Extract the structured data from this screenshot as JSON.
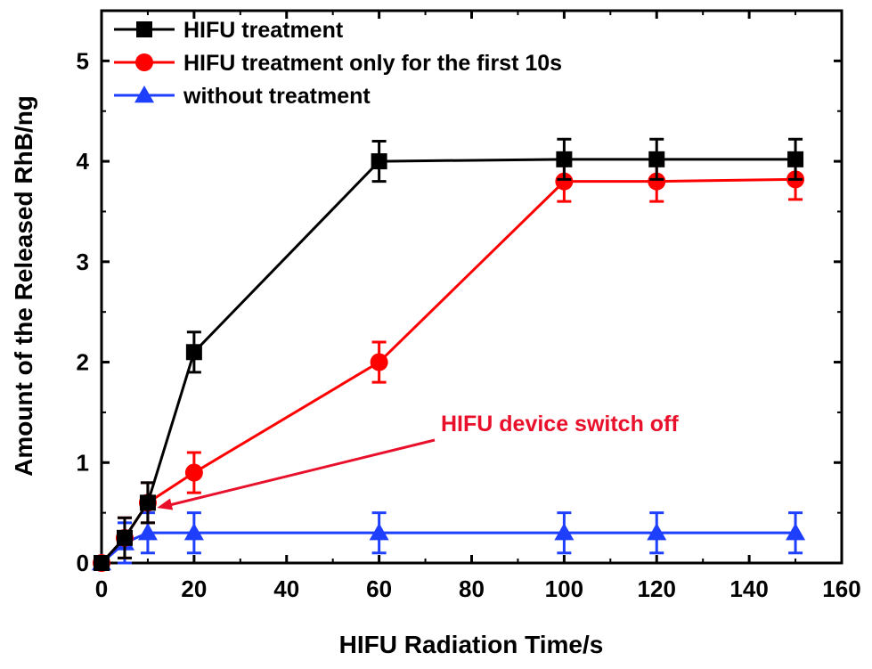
{
  "chart_data": {
    "type": "line",
    "xlabel": "HIFU Radiation Time/s",
    "ylabel": "Amount of the Released RhB/ng",
    "xlim": [
      0,
      160
    ],
    "ylim": [
      0,
      5.5
    ],
    "x_ticks": [
      0,
      20,
      40,
      60,
      80,
      100,
      120,
      140,
      160
    ],
    "y_ticks": [
      0,
      1,
      2,
      3,
      4,
      5
    ],
    "grid": false,
    "legend_position": "top-left",
    "series": [
      {
        "name": "HIFU treatment",
        "color": "#000000",
        "marker": "square",
        "x": [
          0,
          5,
          10,
          20,
          60,
          100,
          120,
          150
        ],
        "y": [
          0,
          0.25,
          0.6,
          2.1,
          4.0,
          4.02,
          4.02,
          4.02
        ],
        "err": [
          0,
          0.2,
          0.2,
          0.2,
          0.2,
          0.2,
          0.2,
          0.2
        ]
      },
      {
        "name": "HIFU treatment only for the first 10s",
        "color": "#ff0000",
        "marker": "circle",
        "x": [
          0,
          5,
          10,
          20,
          60,
          100,
          120,
          150
        ],
        "y": [
          0,
          0.25,
          0.6,
          0.9,
          2.0,
          3.8,
          3.8,
          3.82
        ],
        "err": [
          0,
          0.2,
          0.2,
          0.2,
          0.2,
          0.2,
          0.2,
          0.2
        ]
      },
      {
        "name": "without treatment",
        "color": "#1f3fff",
        "marker": "triangle",
        "x": [
          0,
          5,
          10,
          20,
          60,
          100,
          120,
          150
        ],
        "y": [
          0,
          0.2,
          0.3,
          0.3,
          0.3,
          0.3,
          0.3,
          0.3
        ],
        "err": [
          0,
          0.2,
          0.2,
          0.2,
          0.2,
          0.2,
          0.2,
          0.2
        ]
      }
    ],
    "annotations": [
      {
        "text": "HIFU device switch off",
        "color": "#e8102a",
        "points_to": {
          "x": 12,
          "y": 0.55
        }
      }
    ]
  }
}
